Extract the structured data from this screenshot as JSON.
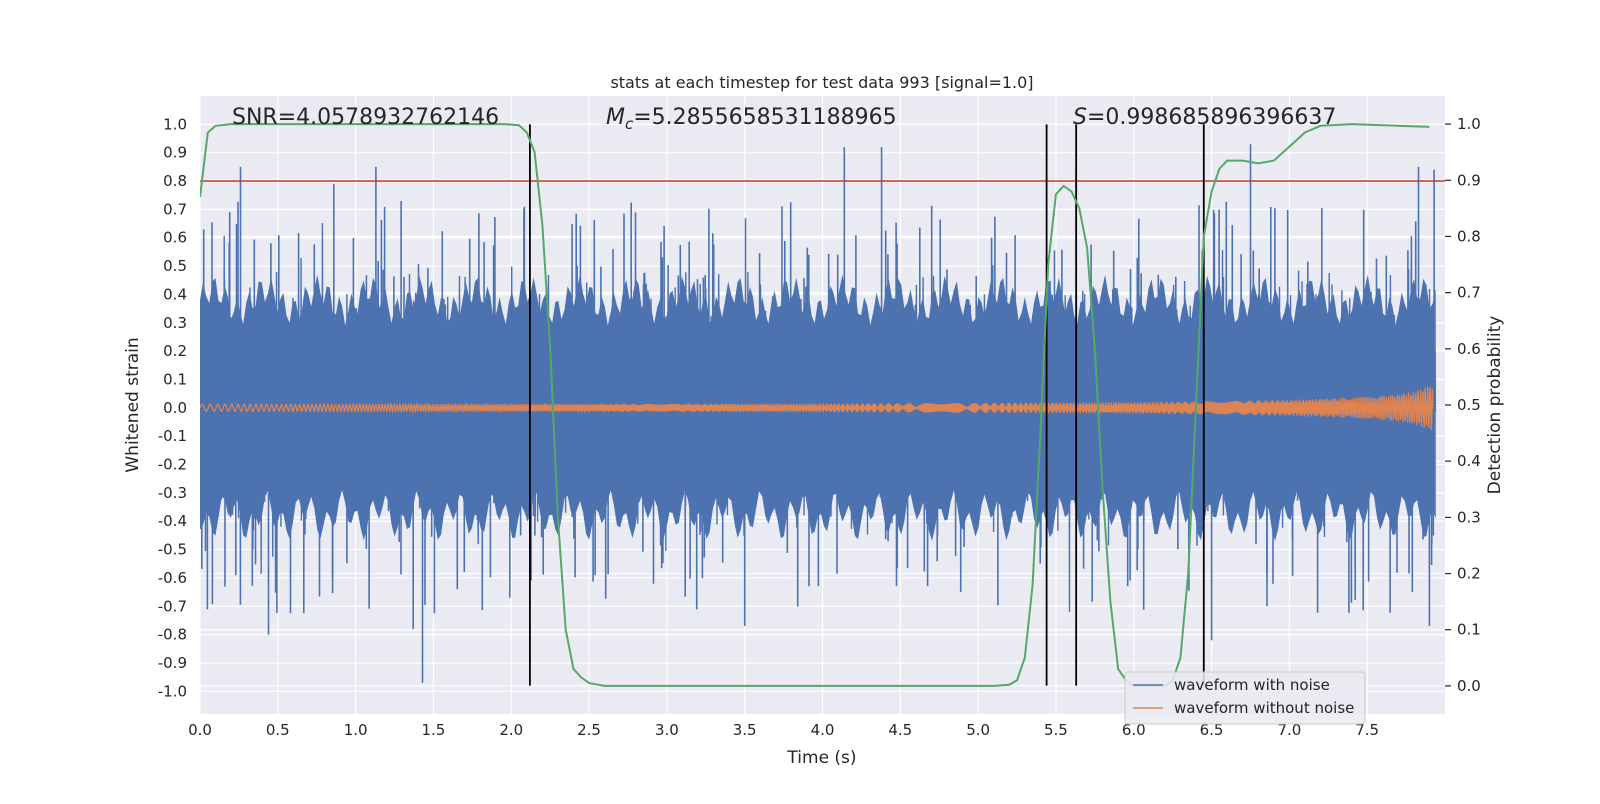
{
  "chart_data": {
    "type": "line",
    "title": "stats at each timestep for test data 993 [signal=1.0]",
    "xlabel": "Time (s)",
    "ylabel": "Whitened strain",
    "y2label": "Detection probability",
    "xlim": [
      0.0,
      8.0
    ],
    "ylim": [
      -1.08,
      1.1
    ],
    "y2lim": [
      -0.05,
      1.05
    ],
    "x_ticks": [
      0.0,
      0.5,
      1.0,
      1.5,
      2.0,
      2.5,
      3.0,
      3.5,
      4.0,
      4.5,
      5.0,
      5.5,
      6.0,
      6.5,
      7.0,
      7.5
    ],
    "x_tick_labels": [
      "0.0",
      "0.5",
      "1.0",
      "1.5",
      "2.0",
      "2.5",
      "3.0",
      "3.5",
      "4.0",
      "4.5",
      "5.0",
      "5.5",
      "6.0",
      "6.5",
      "7.0",
      "7.5"
    ],
    "y_ticks": [
      1.0,
      0.9,
      0.8,
      0.7,
      0.6,
      0.5,
      0.4,
      0.3,
      0.2,
      0.1,
      0.0,
      -0.1,
      -0.2,
      -0.3,
      -0.4,
      -0.5,
      -0.6,
      -0.7,
      -0.8,
      -0.9,
      -1.0
    ],
    "y_tick_labels": [
      "1.0",
      "0.9",
      "0.8",
      "0.7",
      "0.6",
      "0.5",
      "0.4",
      "0.3",
      "0.2",
      "0.1",
      "0.0",
      "-0.1",
      "-0.2",
      "-0.3",
      "-0.4",
      "-0.5",
      "-0.6",
      "-0.7",
      "-0.8",
      "-0.9",
      "-1.0"
    ],
    "y2_ticks": [
      1.0,
      0.9,
      0.8,
      0.7,
      0.6,
      0.5,
      0.4,
      0.3,
      0.2,
      0.1,
      0.0
    ],
    "y2_tick_labels": [
      "1.0",
      "0.9",
      "0.8",
      "0.7",
      "0.6",
      "0.5",
      "0.4",
      "0.3",
      "0.2",
      "0.1",
      "0.0"
    ],
    "grid": true,
    "annotations": {
      "snr": "SNR=4.0578932762146",
      "mc_symbol": "M",
      "mc_subscript": "c",
      "mc_value": "=5.2855658531188965",
      "s_symbol": "S",
      "s_value": "=0.998685896396637"
    },
    "threshold": {
      "y": 0.8,
      "color": "#c0392b"
    },
    "vertical_lines": [
      2.12,
      5.44,
      5.63,
      6.45
    ],
    "legend": {
      "location": "lower-right",
      "entries": [
        {
          "name": "waveform with noise",
          "color": "#4c72b0"
        },
        {
          "name": "waveform without noise",
          "color": "#dd8452"
        }
      ]
    },
    "series": [
      {
        "name": "waveform with noise",
        "color": "#4c72b0",
        "description": "dense whitened noise, roughly uniform amplitude ~±0.55 with peaks near ±0.85",
        "peaks_up": [
          [
            0.26,
            0.85
          ],
          [
            1.13,
            0.85
          ],
          [
            0.86,
            0.79
          ],
          [
            4.14,
            0.92
          ],
          [
            4.38,
            0.92
          ],
          [
            5.63,
            0.85
          ],
          [
            6.75,
            0.93
          ],
          [
            7.83,
            0.85
          ],
          [
            7.93,
            0.84
          ]
        ],
        "peaks_down": [
          [
            1.43,
            -0.97
          ],
          [
            0.44,
            -0.8
          ],
          [
            1.37,
            -0.78
          ],
          [
            3.5,
            -0.77
          ],
          [
            6.5,
            -0.82
          ],
          [
            7.9,
            -0.77
          ]
        ]
      },
      {
        "name": "waveform without noise",
        "color": "#dd8452",
        "description": "chirp with amplitude growing from ~0.01 to ~0.08 near t=7.92 s",
        "envelope": [
          [
            0.0,
            0.012
          ],
          [
            2.0,
            0.013
          ],
          [
            4.0,
            0.015
          ],
          [
            5.0,
            0.017
          ],
          [
            6.0,
            0.02
          ],
          [
            6.5,
            0.023
          ],
          [
            7.0,
            0.028
          ],
          [
            7.5,
            0.038
          ],
          [
            7.7,
            0.048
          ],
          [
            7.8,
            0.058
          ],
          [
            7.88,
            0.075
          ],
          [
            7.92,
            0.08
          ]
        ]
      },
      {
        "name": "detection probability",
        "axis": "right",
        "color": "#55a868",
        "points": [
          [
            0.0,
            0.87
          ],
          [
            0.05,
            0.985
          ],
          [
            0.1,
            0.997
          ],
          [
            0.2,
            1.0
          ],
          [
            1.95,
            1.0
          ],
          [
            2.05,
            0.998
          ],
          [
            2.1,
            0.985
          ],
          [
            2.15,
            0.95
          ],
          [
            2.2,
            0.82
          ],
          [
            2.25,
            0.6
          ],
          [
            2.3,
            0.3
          ],
          [
            2.35,
            0.1
          ],
          [
            2.4,
            0.03
          ],
          [
            2.45,
            0.015
          ],
          [
            2.5,
            0.005
          ],
          [
            2.6,
            0.0
          ],
          [
            5.1,
            0.0
          ],
          [
            5.2,
            0.002
          ],
          [
            5.25,
            0.01
          ],
          [
            5.3,
            0.05
          ],
          [
            5.35,
            0.18
          ],
          [
            5.4,
            0.45
          ],
          [
            5.45,
            0.75
          ],
          [
            5.5,
            0.875
          ],
          [
            5.55,
            0.89
          ],
          [
            5.6,
            0.88
          ],
          [
            5.65,
            0.85
          ],
          [
            5.7,
            0.78
          ],
          [
            5.75,
            0.6
          ],
          [
            5.8,
            0.35
          ],
          [
            5.85,
            0.15
          ],
          [
            5.9,
            0.03
          ],
          [
            5.95,
            0.01
          ],
          [
            6.0,
            0.0
          ],
          [
            6.2,
            0.0
          ],
          [
            6.25,
            0.01
          ],
          [
            6.3,
            0.05
          ],
          [
            6.35,
            0.2
          ],
          [
            6.4,
            0.5
          ],
          [
            6.45,
            0.8
          ],
          [
            6.5,
            0.88
          ],
          [
            6.55,
            0.92
          ],
          [
            6.6,
            0.935
          ],
          [
            6.7,
            0.935
          ],
          [
            6.8,
            0.93
          ],
          [
            6.9,
            0.935
          ],
          [
            7.0,
            0.96
          ],
          [
            7.1,
            0.985
          ],
          [
            7.2,
            0.997
          ],
          [
            7.4,
            1.0
          ],
          [
            7.9,
            0.995
          ]
        ]
      }
    ]
  }
}
